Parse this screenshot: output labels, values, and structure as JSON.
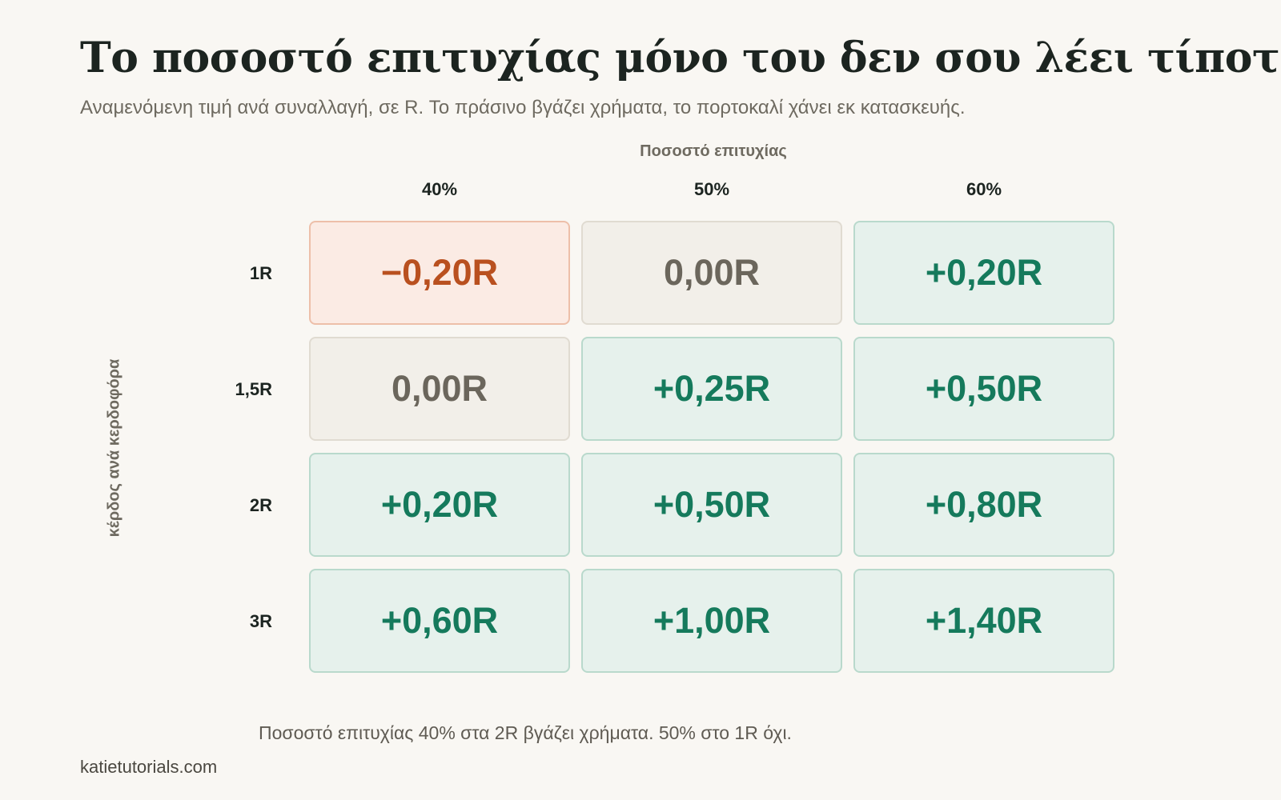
{
  "title": "Το ποσοστό επιτυχίας μόνο του δεν σου λέει τίποτα",
  "subtitle": "Αναμενόμενη τιμή ανά συναλλαγή, σε R. Το πράσινο βγάζει χρήματα, το πορτοκαλί χάνει εκ κατασκευής.",
  "footnote": "Ποσοστό επιτυχίας 40% στα 2R βγάζει χρήματα. 50% στο 1R όχι.",
  "source": "katietutorials.com",
  "colors": {
    "positive_text": "#157a5c",
    "positive_bg": "#e6f1ec",
    "positive_border": "#b9d9cc",
    "neutral_text": "#6b665c",
    "neutral_bg": "#f2efe9",
    "neutral_border": "#e0dbd1",
    "negative_text": "#b9501f",
    "negative_bg": "#fbebe4",
    "negative_border": "#edbfa9"
  },
  "chart_data": {
    "type": "heatmap",
    "xlabel": "Ποσοστό επιτυχίας",
    "ylabel": "κέρδος ανά κερδοφόρα",
    "x_categories": [
      "40%",
      "50%",
      "60%"
    ],
    "y_categories": [
      "1R",
      "1,5R",
      "2R",
      "3R"
    ],
    "values": [
      [
        -0.2,
        0.0,
        0.2
      ],
      [
        0.0,
        0.25,
        0.5
      ],
      [
        0.2,
        0.5,
        0.8
      ],
      [
        0.6,
        1.0,
        1.4
      ]
    ],
    "labels": [
      [
        "−0,20R",
        "0,00R",
        "+0,20R"
      ],
      [
        "0,00R",
        "+0,25R",
        "+0,50R"
      ],
      [
        "+0,20R",
        "+0,50R",
        "+0,80R"
      ],
      [
        "+0,60R",
        "+1,00R",
        "+1,40R"
      ]
    ]
  }
}
